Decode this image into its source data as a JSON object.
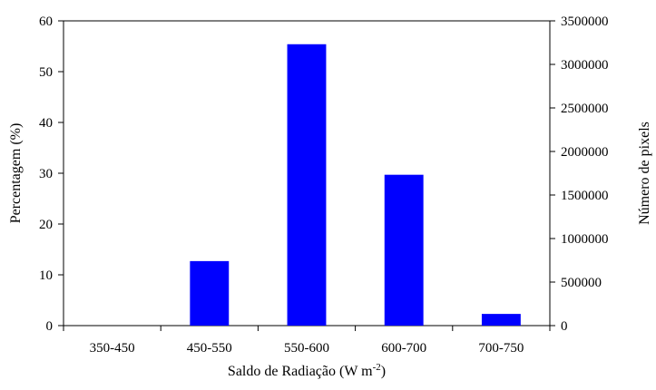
{
  "chart_data": {
    "type": "bar",
    "categories": [
      "350-450",
      "450-550",
      "550-600",
      "600-700",
      "700-750"
    ],
    "series": [
      {
        "values": [
          0,
          12.7,
          55.4,
          29.7,
          2.3
        ]
      }
    ],
    "ylim": [
      0,
      60
    ],
    "yticks": [
      "0",
      "10",
      "20",
      "30",
      "40",
      "50",
      "60"
    ],
    "y2lim": [
      0,
      3500000
    ],
    "y2ticks": [
      "0",
      "500000",
      "1000000",
      "1500000",
      "2000000",
      "2500000",
      "3000000",
      "3500000"
    ],
    "xlabel_main": "Saldo de Radiação (W m",
    "xlabel_sup": "-2",
    "xlabel_end": ")",
    "ylabel": "Percentagem (%)",
    "y2label": "Número de pixels",
    "grid": false,
    "bar_color": "#0000FF"
  }
}
